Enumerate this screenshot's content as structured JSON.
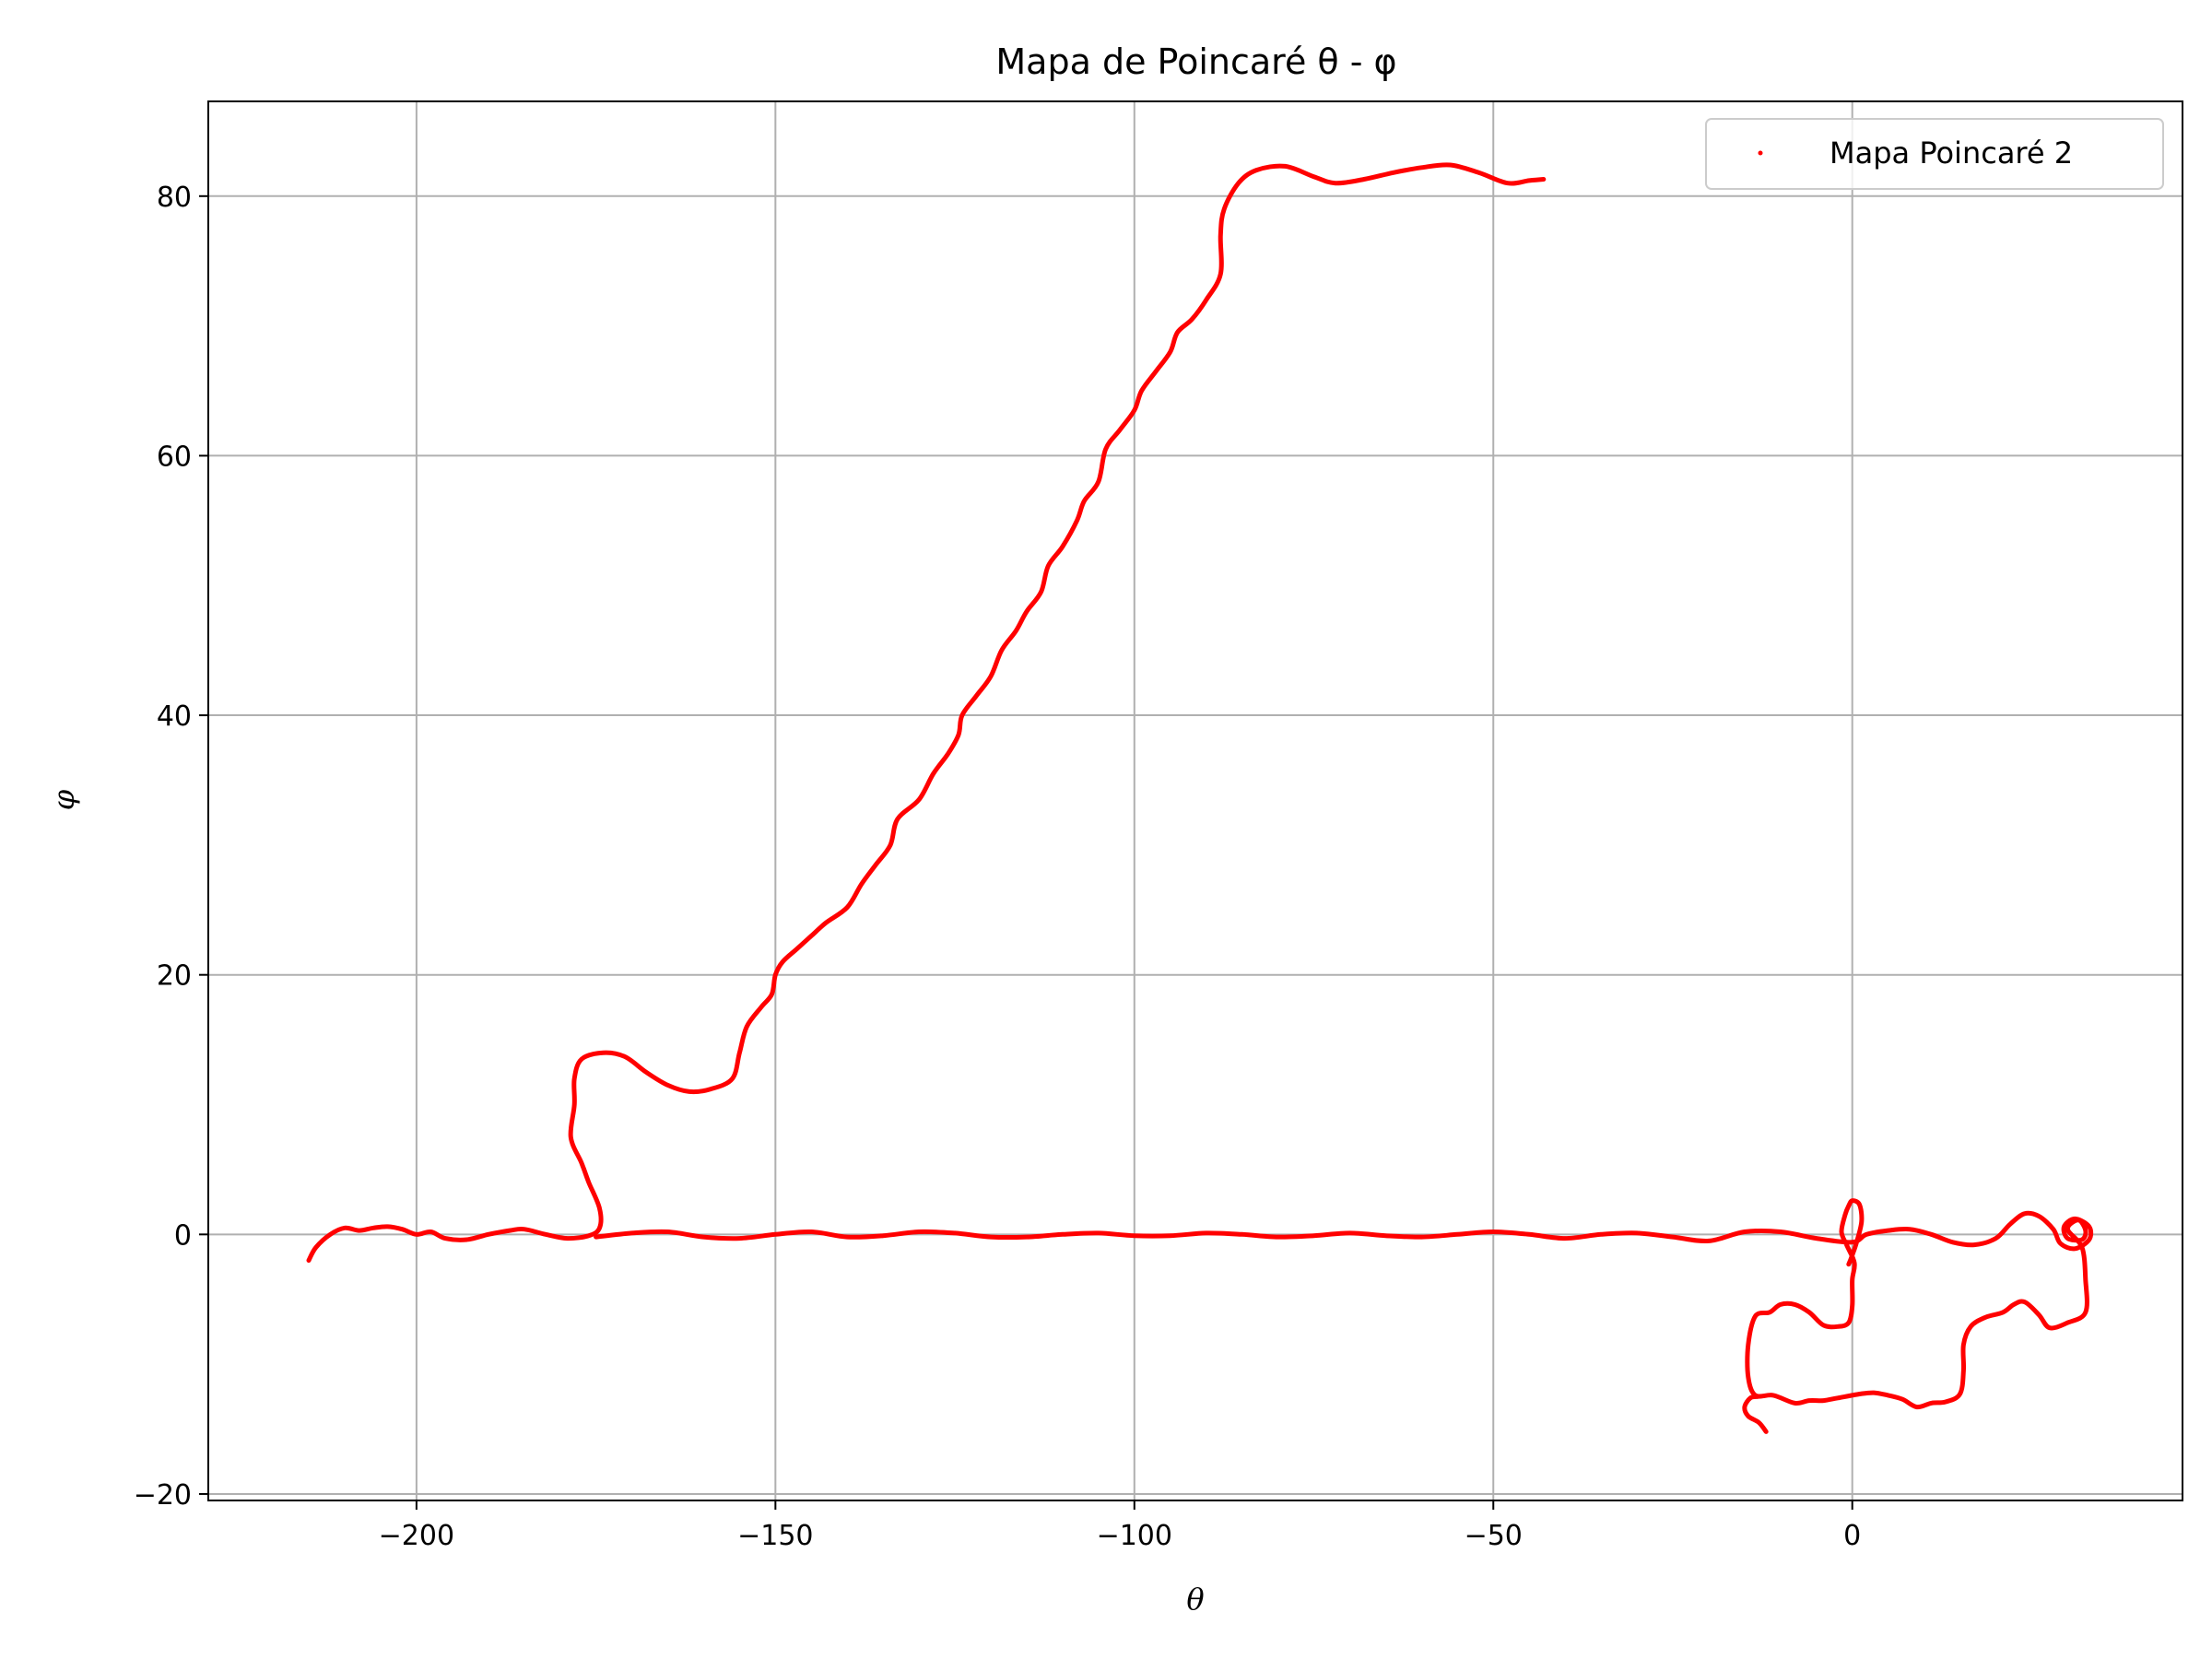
{
  "chart_data": {
    "type": "scatter",
    "title": "Mapa de Poincaré θ - φ",
    "xlabel": "θ",
    "ylabel": "φ",
    "xlim": [
      -229,
      46
    ],
    "ylim": [
      -20.5,
      87.3
    ],
    "xticks": [
      -200,
      -150,
      -100,
      -50,
      0
    ],
    "yticks": [
      -20,
      0,
      20,
      40,
      60,
      80
    ],
    "xtick_labels": [
      "−200",
      "−150",
      "−100",
      "−50",
      "0"
    ],
    "ytick_labels": [
      "−20",
      "0",
      "20",
      "40",
      "60",
      "80"
    ],
    "grid": true,
    "legend": {
      "placement": "top-right",
      "entries": [
        "Mapa Poincaré 2"
      ]
    },
    "colors": {
      "series": "#ff0000",
      "grid": "#b0b0b0",
      "frame": "#000000",
      "legend_border": "#cccccc"
    },
    "series": [
      {
        "name": "Mapa Poincaré 2",
        "marker": "point",
        "segments": [
          [
            [
              -215,
              -2
            ],
            [
              -214,
              -1
            ],
            [
              -212,
              0
            ],
            [
              -210,
              0.5
            ],
            [
              -208,
              0.3
            ],
            [
              -206,
              0.5
            ],
            [
              -204,
              0.6
            ],
            [
              -202,
              0.4
            ],
            [
              -200,
              0
            ],
            [
              -198,
              0.2
            ],
            [
              -196,
              -0.3
            ],
            [
              -193,
              -0.4
            ],
            [
              -190,
              0
            ],
            [
              -187,
              0.3
            ],
            [
              -185,
              0.4
            ],
            [
              -182,
              0
            ],
            [
              -179,
              -0.3
            ],
            [
              -176,
              -0.1
            ],
            [
              -174.5,
              0.5
            ],
            [
              -174.5,
              2
            ],
            [
              -176,
              4
            ],
            [
              -177,
              5.5
            ],
            [
              -178.5,
              7.5
            ],
            [
              -178,
              10
            ],
            [
              -178,
              12
            ],
            [
              -177,
              13.5
            ],
            [
              -174,
              14
            ],
            [
              -171,
              13.7
            ],
            [
              -168,
              12.5
            ],
            [
              -165,
              11.5
            ],
            [
              -162,
              11
            ],
            [
              -159,
              11.2
            ],
            [
              -156,
              12
            ],
            [
              -155,
              14
            ],
            [
              -154,
              16
            ],
            [
              -152,
              17.5
            ],
            [
              -150.5,
              18.5
            ],
            [
              -150,
              20
            ],
            [
              -149,
              21
            ],
            [
              -147,
              22
            ],
            [
              -145,
              23
            ],
            [
              -143,
              24
            ],
            [
              -140,
              25.2
            ],
            [
              -138,
              27
            ],
            [
              -136,
              28.5
            ],
            [
              -134,
              30
            ],
            [
              -133,
              32
            ],
            [
              -130,
              33.5
            ],
            [
              -128,
              35.5
            ],
            [
              -126,
              37
            ],
            [
              -124.5,
              38.5
            ],
            [
              -124,
              40
            ],
            [
              -122,
              41.5
            ],
            [
              -120,
              43
            ],
            [
              -118.5,
              45
            ],
            [
              -116.5,
              46.5
            ],
            [
              -115,
              48
            ],
            [
              -113,
              49.5
            ],
            [
              -112,
              51.5
            ],
            [
              -110,
              53
            ],
            [
              -108,
              55
            ],
            [
              -107,
              56.5
            ],
            [
              -105,
              58
            ],
            [
              -104,
              60.5
            ],
            [
              -102,
              62
            ],
            [
              -100,
              63.5
            ],
            [
              -99,
              65
            ],
            [
              -97,
              66.5
            ],
            [
              -95,
              68
            ],
            [
              -94,
              69.5
            ],
            [
              -92,
              70.5
            ],
            [
              -90,
              72
            ],
            [
              -88,
              74
            ],
            [
              -88,
              77
            ],
            [
              -87.5,
              79
            ],
            [
              -85.5,
              81
            ],
            [
              -83,
              82
            ],
            [
              -79,
              82.3
            ],
            [
              -75,
              81.5
            ],
            [
              -72,
              81
            ],
            [
              -68,
              81.3
            ],
            [
              -64,
              81.8
            ],
            [
              -60,
              82.2
            ],
            [
              -56,
              82.4
            ],
            [
              -52,
              81.8
            ],
            [
              -48,
              81
            ],
            [
              -45,
              81.2
            ],
            [
              -43,
              81.3
            ]
          ],
          [
            [
              -175,
              -0.2
            ],
            [
              -170,
              0.1
            ],
            [
              -165,
              0.2
            ],
            [
              -160,
              -0.2
            ],
            [
              -155,
              -0.3
            ],
            [
              -150,
              0
            ],
            [
              -145,
              0.2
            ],
            [
              -140,
              -0.2
            ],
            [
              -135,
              -0.1
            ],
            [
              -130,
              0.2
            ],
            [
              -125,
              0.1
            ],
            [
              -120,
              -0.2
            ],
            [
              -115,
              -0.2
            ],
            [
              -110,
              0
            ],
            [
              -105,
              0.1
            ],
            [
              -100,
              -0.1
            ],
            [
              -95,
              -0.1
            ],
            [
              -90,
              0.1
            ],
            [
              -85,
              0
            ],
            [
              -80,
              -0.2
            ],
            [
              -75,
              -0.1
            ],
            [
              -70,
              0.1
            ],
            [
              -65,
              -0.1
            ],
            [
              -60,
              -0.2
            ],
            [
              -55,
              0
            ],
            [
              -50,
              0.2
            ],
            [
              -45,
              0
            ],
            [
              -40,
              -0.3
            ],
            [
              -35,
              0
            ],
            [
              -30,
              0.1
            ],
            [
              -25,
              -0.2
            ],
            [
              -20,
              -0.5
            ],
            [
              -15,
              0.2
            ],
            [
              -10,
              0.2
            ],
            [
              -5,
              -0.3
            ],
            [
              0,
              -0.6
            ],
            [
              2,
              0
            ],
            [
              5,
              0.3
            ],
            [
              8,
              0.4
            ],
            [
              11,
              0
            ],
            [
              14,
              -0.6
            ],
            [
              17,
              -0.8
            ],
            [
              20,
              -0.3
            ],
            [
              22,
              0.8
            ],
            [
              24,
              1.6
            ],
            [
              26,
              1.4
            ],
            [
              28,
              0.4
            ],
            [
              29,
              -0.7
            ],
            [
              31,
              -1.1
            ],
            [
              33,
              -0.4
            ],
            [
              33,
              0.6
            ],
            [
              31,
              1.2
            ],
            [
              29.5,
              0.6
            ],
            [
              30,
              -0.3
            ],
            [
              32,
              -0.4
            ],
            [
              32.5,
              0.3
            ],
            [
              31.5,
              1.1
            ],
            [
              30,
              0.4
            ],
            [
              32,
              -1
            ],
            [
              32.5,
              -3.5
            ],
            [
              32.5,
              -6
            ],
            [
              30,
              -6.8
            ],
            [
              27.5,
              -7.2
            ],
            [
              26,
              -6.2
            ],
            [
              24,
              -5.2
            ],
            [
              22.5,
              -5.4
            ],
            [
              21,
              -6
            ],
            [
              18.5,
              -6.4
            ],
            [
              16.5,
              -7.1
            ],
            [
              15.5,
              -8.5
            ],
            [
              15.5,
              -10.5
            ],
            [
              15,
              -12.3
            ],
            [
              13,
              -12.9
            ],
            [
              11,
              -13
            ],
            [
              9,
              -13.3
            ],
            [
              7,
              -12.7
            ],
            [
              5,
              -12.4
            ],
            [
              3,
              -12.2
            ],
            [
              1,
              -12.3
            ],
            [
              -2,
              -12.6
            ],
            [
              -4,
              -12.8
            ],
            [
              -6,
              -12.8
            ],
            [
              -8,
              -13
            ],
            [
              -11,
              -12.4
            ],
            [
              -13.5,
              -12.4
            ],
            [
              -14.5,
              -11
            ],
            [
              -14.5,
              -8.5
            ],
            [
              -13.5,
              -6.3
            ],
            [
              -11.5,
              -6
            ],
            [
              -10,
              -5.4
            ],
            [
              -8,
              -5.4
            ],
            [
              -6,
              -6
            ],
            [
              -4,
              -7
            ],
            [
              -2,
              -7.1
            ],
            [
              -0.5,
              -6.8
            ],
            [
              0,
              -5.5
            ],
            [
              0,
              -3.5
            ],
            [
              0.3,
              -2.2
            ],
            [
              -0.8,
              -0.8
            ],
            [
              -1.5,
              0.2
            ],
            [
              -1,
              1.5
            ],
            [
              -0.5,
              2.2
            ],
            [
              0,
              2.6
            ],
            [
              1,
              2.3
            ],
            [
              1.3,
              1
            ],
            [
              0.6,
              -0.6
            ],
            [
              0,
              -1.6
            ],
            [
              -0.5,
              -2.3
            ]
          ],
          [
            [
              -12,
              -15.2
            ],
            [
              -13,
              -14.5
            ],
            [
              -14.5,
              -14
            ],
            [
              -15,
              -13.3
            ],
            [
              -14.2,
              -12.6
            ],
            [
              -13.2,
              -12.5
            ]
          ]
        ]
      }
    ]
  }
}
